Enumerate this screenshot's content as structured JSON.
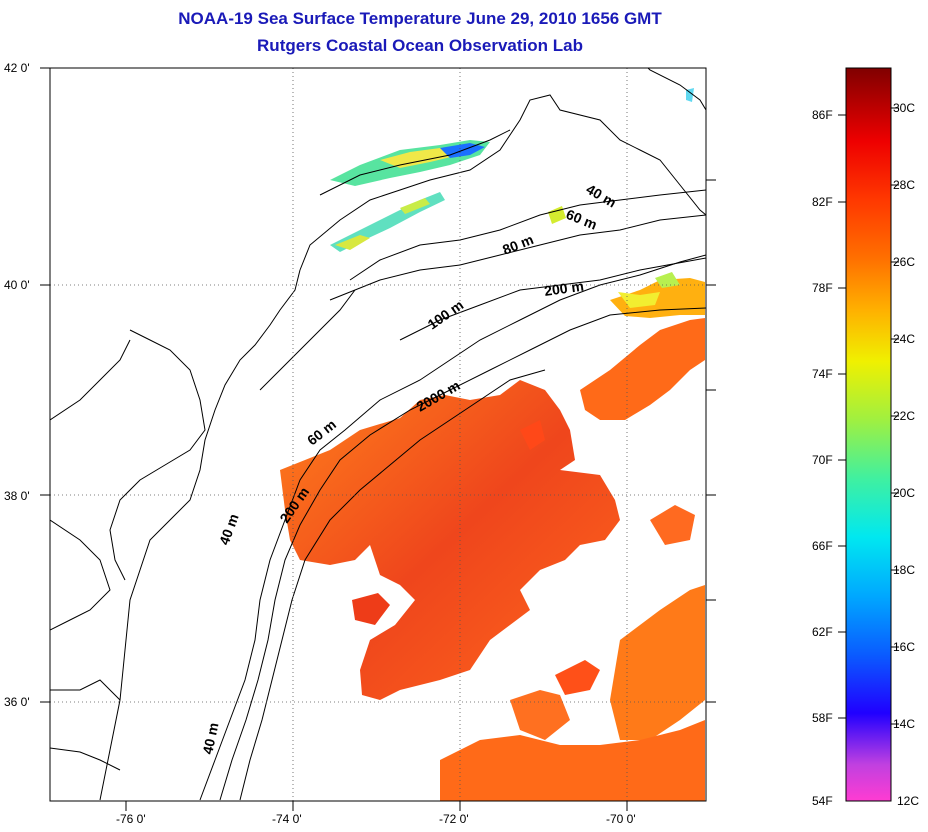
{
  "header": {
    "title": "NOAA-19 Sea Surface Temperature June 29, 2010 1656 GMT",
    "subtitle": "Rutgers Coastal Ocean Observation Lab"
  },
  "map": {
    "lat_labels": [
      "42 0'",
      "40 0'",
      "38 0'",
      "36 0'"
    ],
    "lon_labels": [
      "-76 0'",
      "-74 0'",
      "-72 0'",
      "-70 0'"
    ],
    "isobath_labels": [
      "40 m",
      "60 m",
      "80 m",
      "200 m",
      "100 m",
      "2000 m",
      "60 m",
      "200 m",
      "40 m",
      "40 m"
    ],
    "grid": true
  },
  "colorbar": {
    "fahrenheit": [
      "86F",
      "82F",
      "78F",
      "74F",
      "70F",
      "66F",
      "62F",
      "58F",
      "54F"
    ],
    "celsius": [
      "30C",
      "28C",
      "26C",
      "24C",
      "22C",
      "20C",
      "18C",
      "16C",
      "14C",
      "12C"
    ]
  },
  "colors": {
    "title": "#1a1ab8",
    "warm": "#ff6a0a",
    "hot": "#e8300a"
  }
}
